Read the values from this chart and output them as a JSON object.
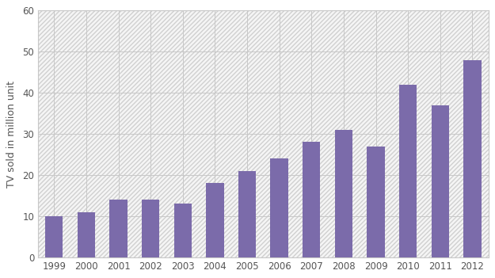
{
  "years": [
    "1999",
    "2000",
    "2001",
    "2002",
    "2003",
    "2004",
    "2005",
    "2006",
    "2007",
    "2008",
    "2009",
    "2010",
    "2011",
    "2012"
  ],
  "values": [
    10,
    11,
    14,
    14,
    13,
    18,
    21,
    24,
    28,
    31,
    27,
    42,
    37,
    48
  ],
  "bar_color": "#7b6baa",
  "ylabel": "TV sold in million unit",
  "ylim": [
    0,
    60
  ],
  "yticks": [
    0,
    10,
    20,
    30,
    40,
    50,
    60
  ],
  "background_color": "#ffffff",
  "plot_bg_color": "#f0eeee",
  "hatch_color": "#dcdcdc",
  "grid_color": "#c8c8c8",
  "bar_edge_color": "none",
  "tick_label_color": "#555555",
  "ylabel_color": "#555555"
}
